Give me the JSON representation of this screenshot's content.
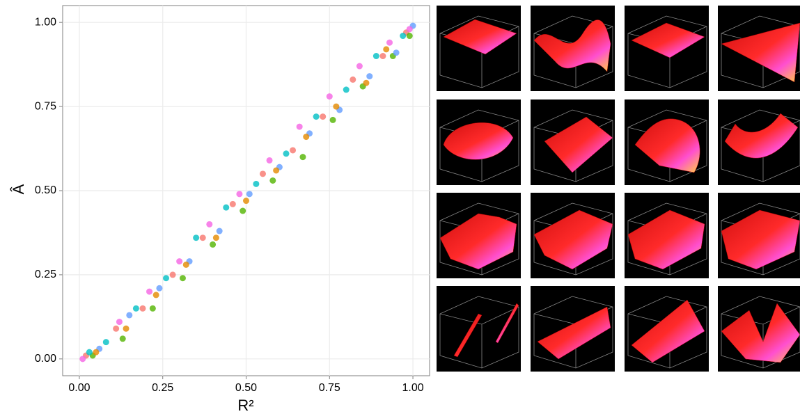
{
  "chart_data": {
    "type": "scatter",
    "x_label": "R²",
    "y_label": "Â",
    "xlim": [
      -0.05,
      1.05
    ],
    "ylim": [
      -0.05,
      1.05
    ],
    "xticks": [
      {
        "value": 0,
        "label": "0.00"
      },
      0.25,
      {
        "value": 0.5,
        "label": "0.50"
      },
      0.75,
      {
        "value": 1,
        "label": "1.00"
      }
    ],
    "yticks": [
      {
        "value": 0,
        "label": "0.00"
      },
      0.25,
      {
        "value": 0.5,
        "label": "0.50"
      },
      0.75,
      {
        "value": 1,
        "label": "1.00"
      }
    ],
    "grid": true,
    "series": [
      {
        "color": "#f8766d",
        "x": [
          0.02,
          0.11,
          0.19,
          0.28,
          0.37,
          0.46,
          0.55,
          0.64,
          0.73,
          0.82,
          0.91,
          0.98
        ],
        "y": [
          0.01,
          0.09,
          0.15,
          0.25,
          0.36,
          0.46,
          0.55,
          0.62,
          0.72,
          0.83,
          0.9,
          0.97
        ]
      },
      {
        "color": "#53b400",
        "x": [
          0.04,
          0.13,
          0.22,
          0.31,
          0.4,
          0.49,
          0.58,
          0.67,
          0.76,
          0.85,
          0.94,
          0.99
        ],
        "y": [
          0.01,
          0.06,
          0.15,
          0.24,
          0.34,
          0.44,
          0.53,
          0.6,
          0.71,
          0.81,
          0.9,
          0.96
        ]
      },
      {
        "color": "#00bfc4",
        "x": [
          0.03,
          0.08,
          0.17,
          0.26,
          0.35,
          0.44,
          0.53,
          0.62,
          0.71,
          0.8,
          0.89,
          0.97
        ],
        "y": [
          0.02,
          0.05,
          0.15,
          0.24,
          0.36,
          0.45,
          0.52,
          0.61,
          0.72,
          0.8,
          0.9,
          0.96
        ]
      },
      {
        "color": "#619cff",
        "x": [
          0.06,
          0.15,
          0.24,
          0.33,
          0.42,
          0.51,
          0.6,
          0.69,
          0.78,
          0.87,
          0.95,
          1.0
        ],
        "y": [
          0.03,
          0.13,
          0.21,
          0.29,
          0.38,
          0.49,
          0.57,
          0.67,
          0.74,
          0.84,
          0.91,
          0.99
        ]
      },
      {
        "color": "#f564e3",
        "x": [
          0.01,
          0.12,
          0.21,
          0.3,
          0.39,
          0.48,
          0.57,
          0.66,
          0.75,
          0.84,
          0.93,
          0.99
        ],
        "y": [
          0.0,
          0.11,
          0.2,
          0.29,
          0.4,
          0.49,
          0.59,
          0.69,
          0.78,
          0.87,
          0.94,
          0.98
        ]
      },
      {
        "color": "#e38900",
        "x": [
          0.05,
          0.14,
          0.23,
          0.32,
          0.41,
          0.5,
          0.59,
          0.68,
          0.77,
          0.86,
          0.92
        ],
        "y": [
          0.02,
          0.09,
          0.19,
          0.28,
          0.36,
          0.47,
          0.56,
          0.66,
          0.75,
          0.82,
          0.92
        ]
      }
    ]
  }
}
